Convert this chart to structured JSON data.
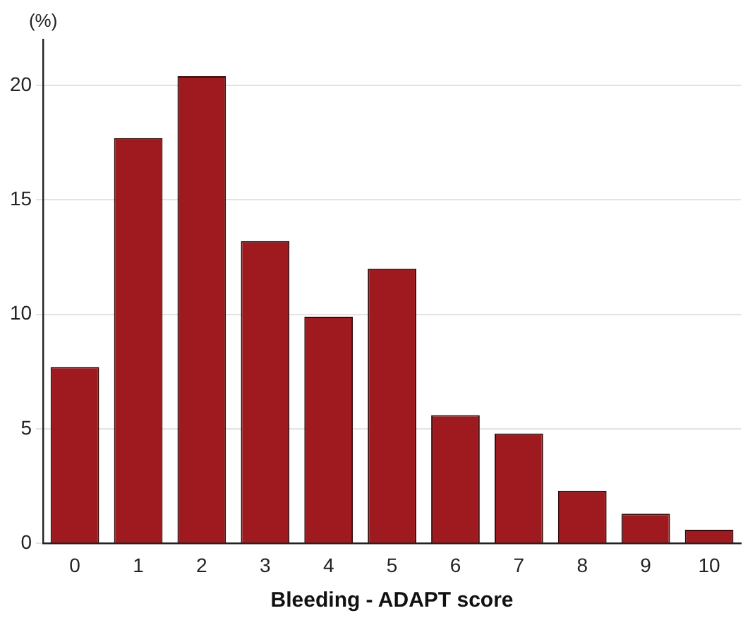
{
  "chart_data": {
    "type": "bar",
    "xlabel": "Bleeding - ADAPT score",
    "ylabel": "(%)",
    "categories": [
      "0",
      "1",
      "2",
      "3",
      "4",
      "5",
      "6",
      "7",
      "8",
      "9",
      "10"
    ],
    "values": [
      7.7,
      17.7,
      20.4,
      13.2,
      9.9,
      12.0,
      5.6,
      4.8,
      2.3,
      1.3,
      0.6
    ],
    "color": "#9e1a1f",
    "ylim": [
      0,
      22
    ],
    "yticks": [
      0,
      5,
      10,
      15,
      20
    ],
    "grid": "y",
    "legend": false
  }
}
